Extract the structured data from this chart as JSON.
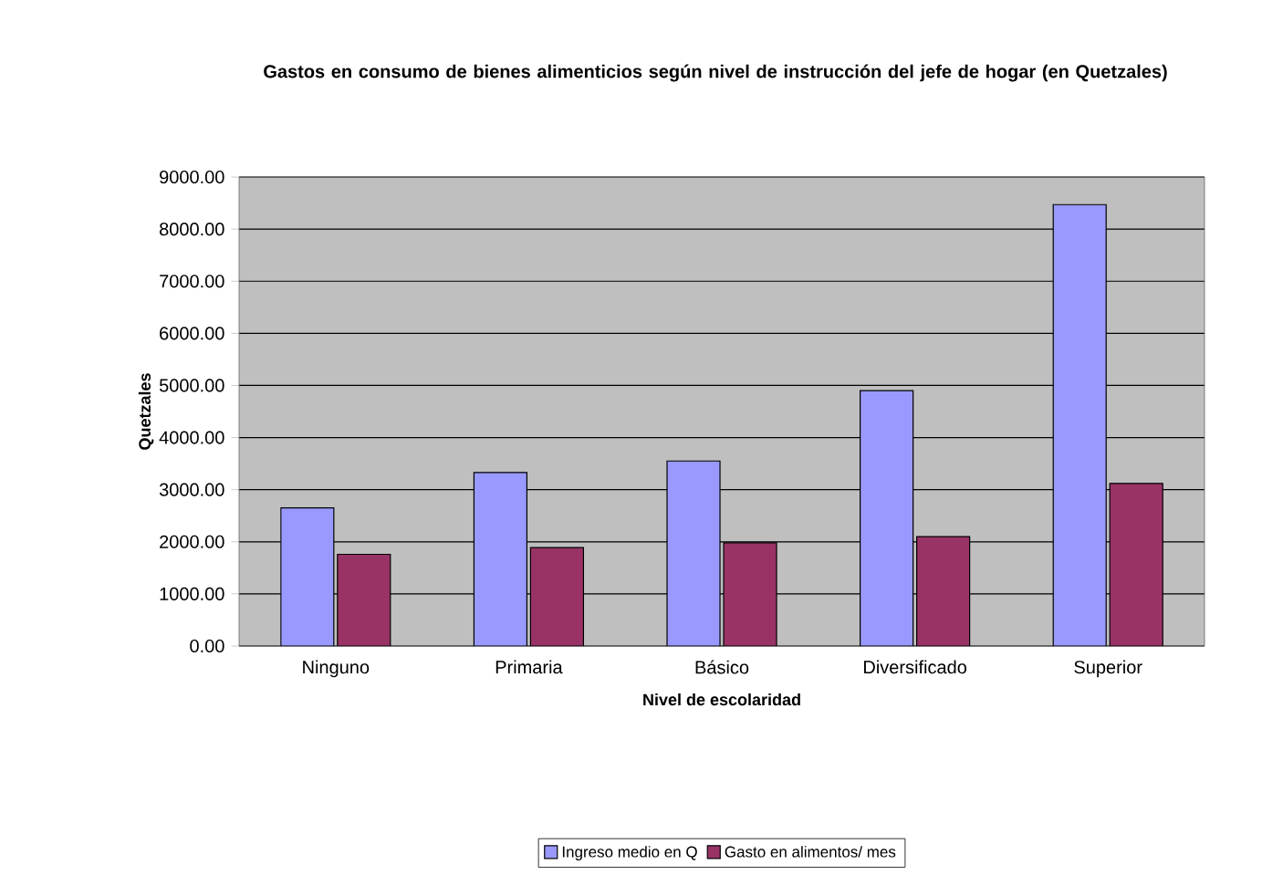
{
  "chart_data": {
    "type": "bar",
    "title": "Gastos en consumo de bienes alimenticios según nivel de instrucción del jefe de hogar (en Quetzales)",
    "xlabel": "Nivel de escolaridad",
    "ylabel": "Quetzales",
    "categories": [
      "Ninguno",
      "Primaria",
      "Básico",
      "Diversificado",
      "Superior"
    ],
    "series": [
      {
        "name": "Ingreso medio en Q",
        "color": "#9999ff",
        "values": [
          2650,
          3330,
          3550,
          4900,
          8470
        ]
      },
      {
        "name": "Gasto en alimentos/ mes",
        "color": "#993366",
        "values": [
          1760,
          1890,
          1980,
          2100,
          3120
        ]
      }
    ],
    "ylim": [
      0,
      9000
    ],
    "yticks": [
      {
        "value": 0,
        "label": "0.00"
      },
      {
        "value": 1000,
        "label": "1000.00"
      },
      {
        "value": 2000,
        "label": "2000.00"
      },
      {
        "value": 3000,
        "label": "3000.00"
      },
      {
        "value": 4000,
        "label": "4000.00"
      },
      {
        "value": 5000,
        "label": "5000.00"
      },
      {
        "value": 6000,
        "label": "6000.00"
      },
      {
        "value": 7000,
        "label": "7000.00"
      },
      {
        "value": 8000,
        "label": "8000.00"
      },
      {
        "value": 9000,
        "label": "9000.00"
      }
    ],
    "grid": "y",
    "legend": "bottom"
  }
}
